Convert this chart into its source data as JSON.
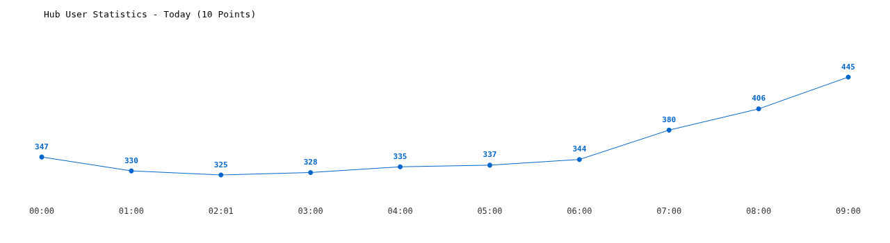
{
  "chart_data": {
    "type": "line",
    "title": "Hub User Statistics - Today (10 Points)",
    "categories": [
      "00:00",
      "01:00",
      "02:01",
      "03:00",
      "04:00",
      "05:00",
      "06:00",
      "07:00",
      "08:00",
      "09:00"
    ],
    "series": [
      {
        "color": "#0066cc",
        "values": [
          347,
          330,
          325,
          328,
          335,
          337,
          344,
          380,
          406,
          445
        ]
      }
    ],
    "data_labels": true,
    "marker": "circle",
    "line_style": "solid",
    "grid": false,
    "legend": false
  }
}
